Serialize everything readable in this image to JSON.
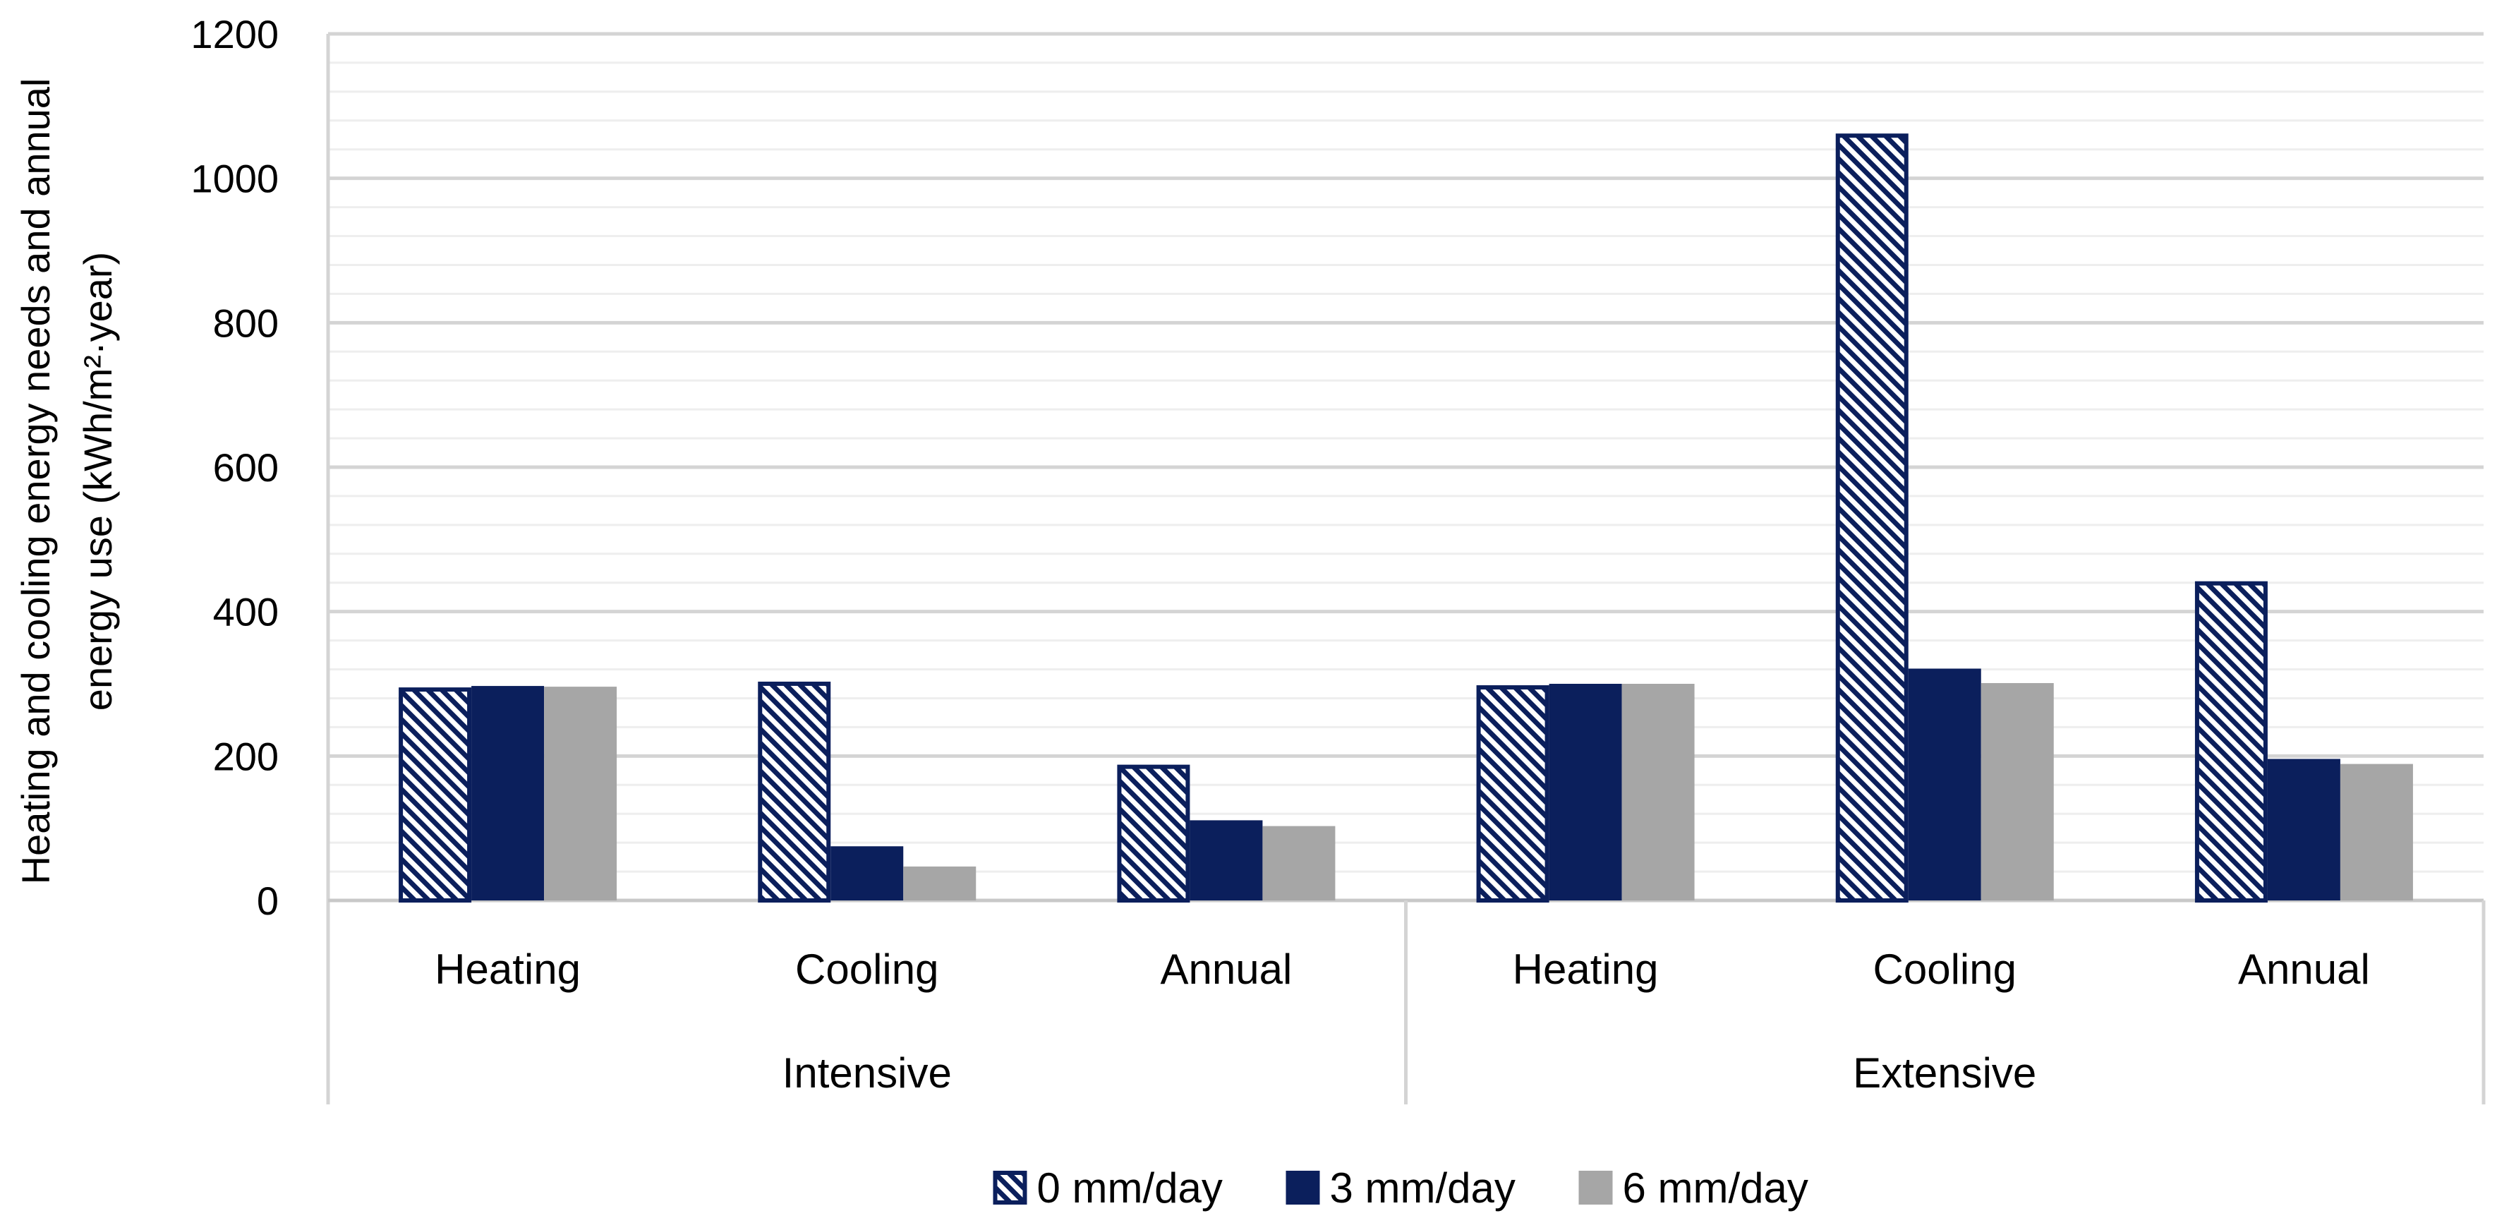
{
  "chart_data": {
    "type": "bar",
    "title": "",
    "xlabel": "",
    "ylabel_lines": [
      "Heating and cooling energy needs and annual",
      "energy use (kWh/m²·year)"
    ],
    "ylim": [
      0,
      1200
    ],
    "yticks": [
      0,
      200,
      400,
      600,
      800,
      1000,
      1200
    ],
    "minor_step": 40,
    "grid": true,
    "legend_position": "bottom",
    "groups": [
      {
        "label": "Intensive",
        "categories": [
          "Heating",
          "Cooling",
          "Annual"
        ]
      },
      {
        "label": "Extensive",
        "categories": [
          "Heating",
          "Cooling",
          "Annual"
        ]
      }
    ],
    "series": [
      {
        "name": "0 mm/day",
        "values": [
          295,
          303,
          188,
          298,
          1062,
          442
        ],
        "style": "hatched",
        "color": "#0b1f5c"
      },
      {
        "name": "3 mm/day",
        "values": [
          297,
          75,
          111,
          300,
          321,
          196
        ],
        "style": "solid",
        "color": "#0b1f5c"
      },
      {
        "name": "6 mm/day",
        "values": [
          296,
          47,
          103,
          300,
          301,
          189
        ],
        "style": "solid",
        "color": "#a6a6a6"
      }
    ]
  }
}
